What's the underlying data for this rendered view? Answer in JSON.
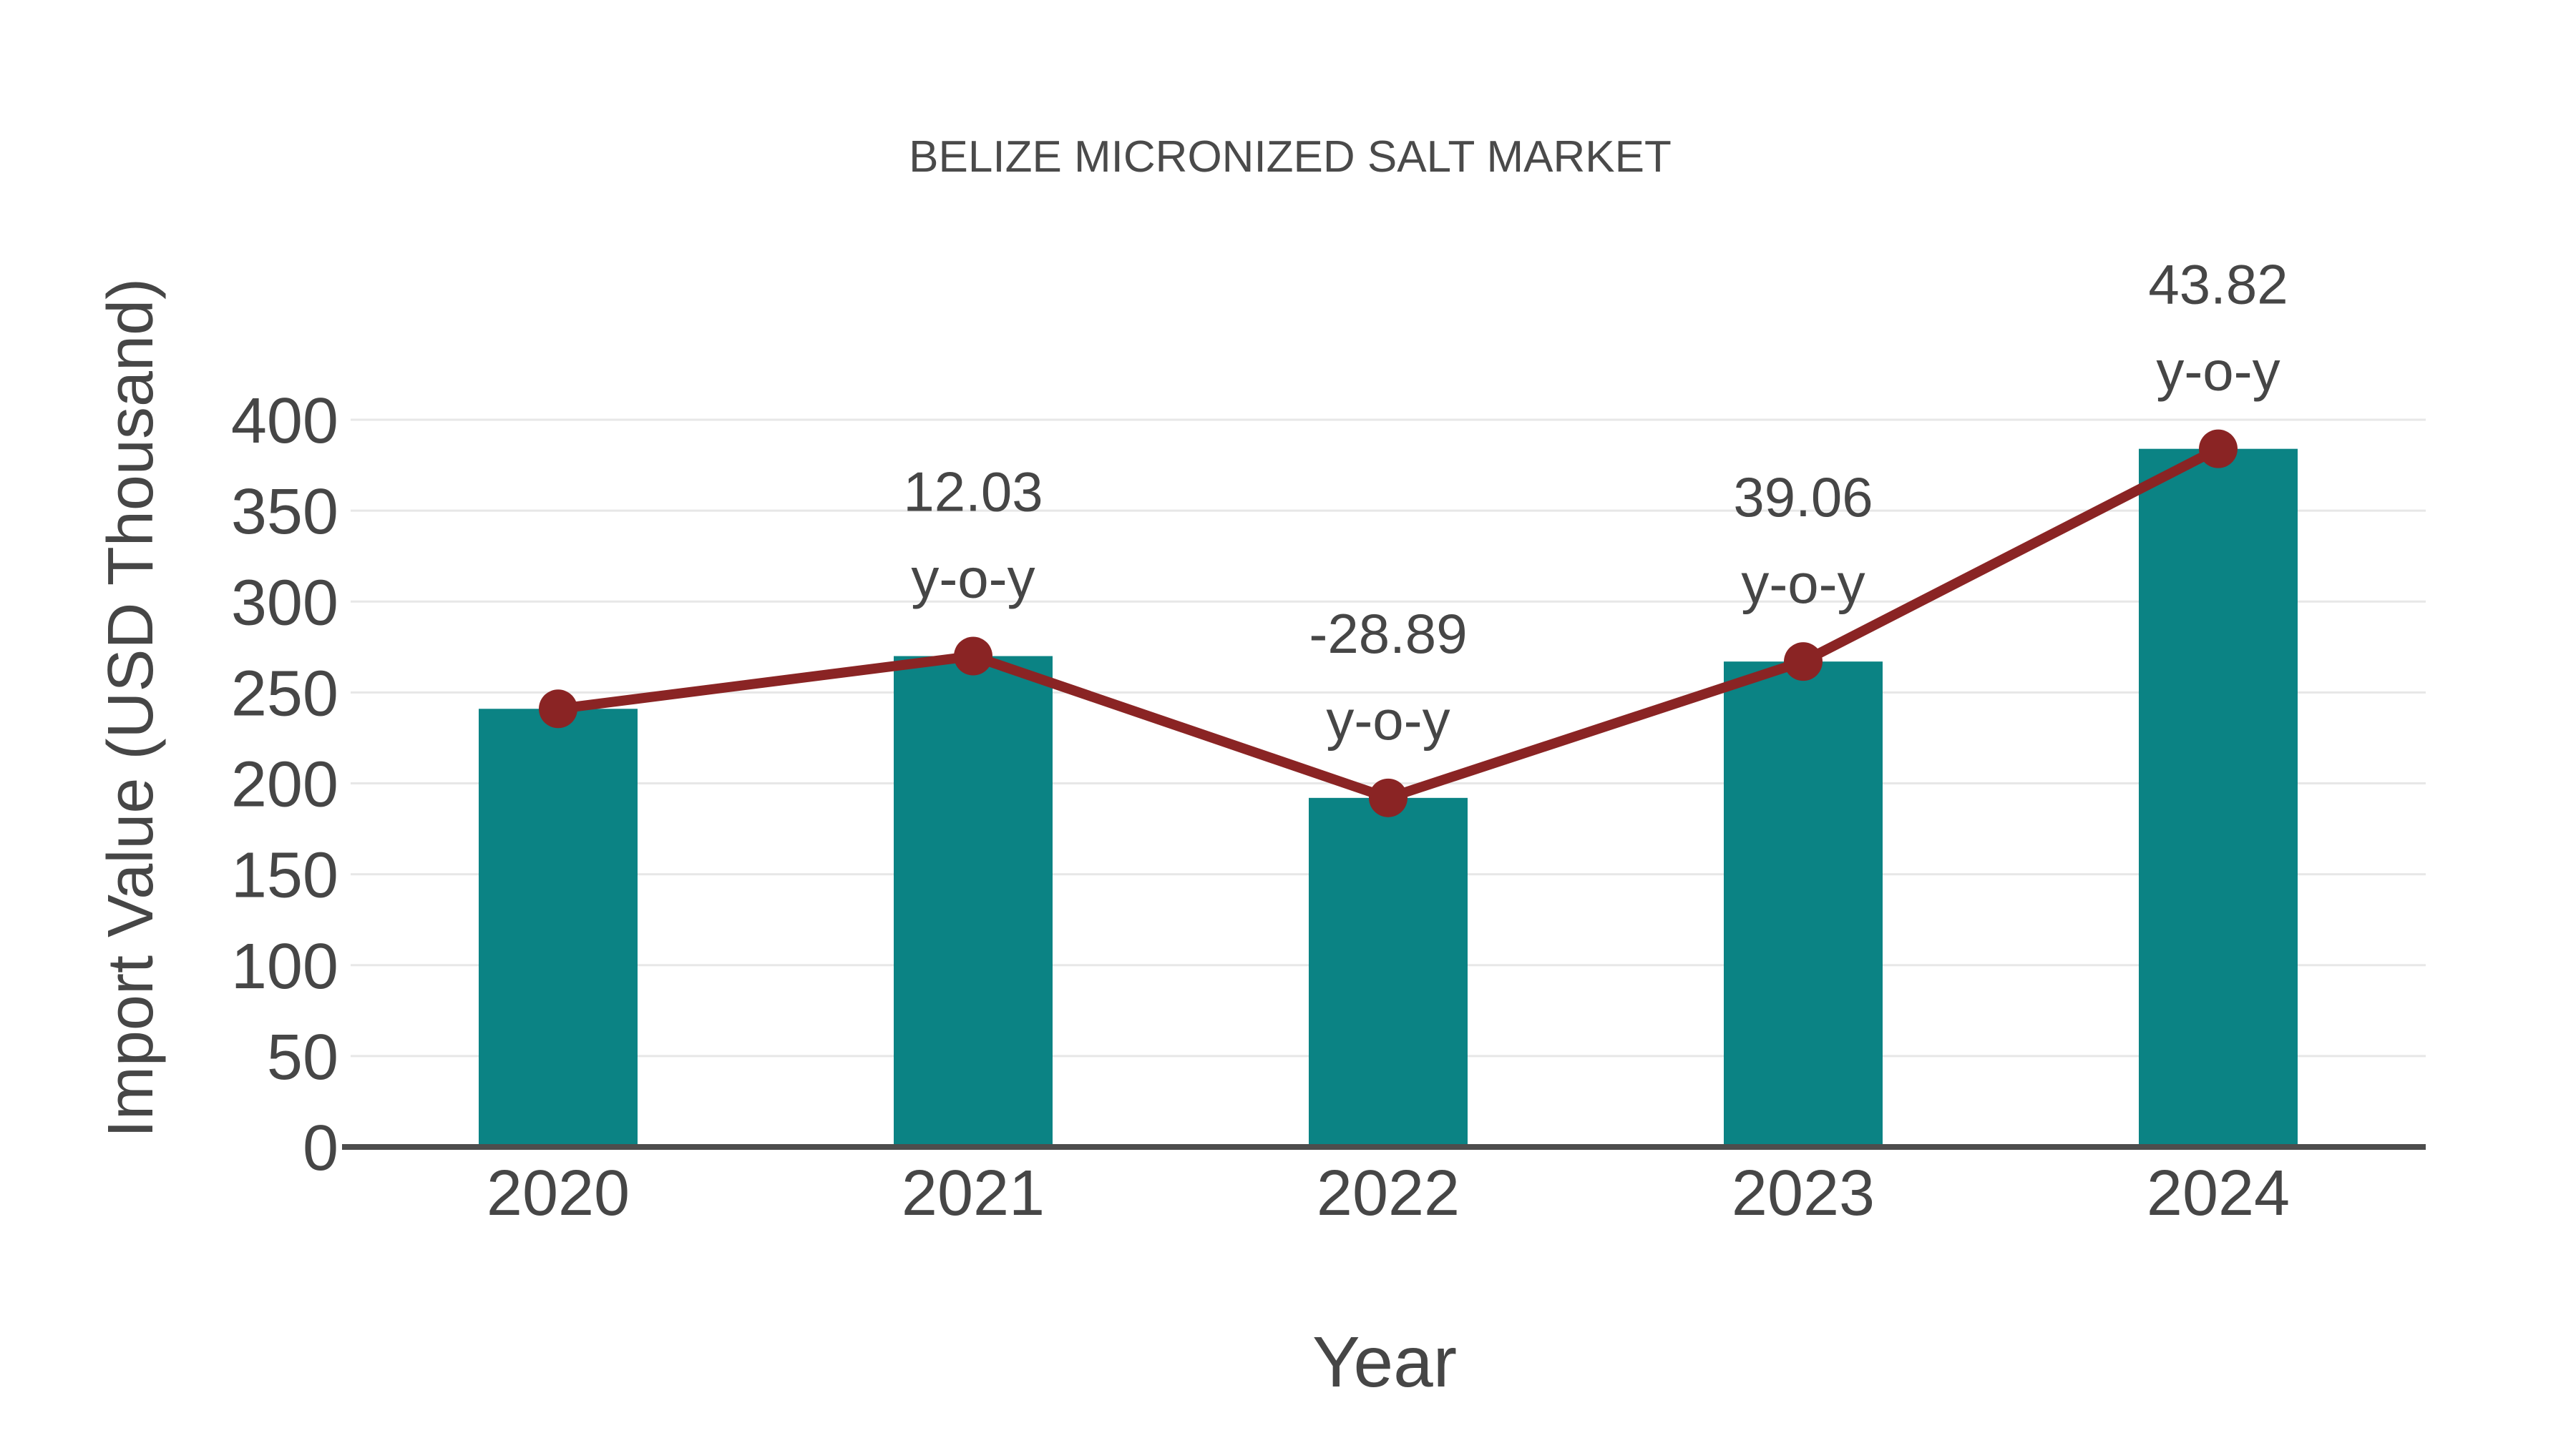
{
  "chart_data": {
    "type": "bar+line",
    "title": "BELIZE MICRONIZED SALT MARKET",
    "xlabel": "Year",
    "ylabel": "Import Value (USD Thousand)",
    "categories": [
      "2020",
      "2021",
      "2022",
      "2023",
      "2024"
    ],
    "series": [
      {
        "name": "import-value-bars",
        "type": "bar",
        "values": [
          241,
          270,
          192,
          267,
          384
        ],
        "color": "#0b8384"
      },
      {
        "name": "import-value-trend",
        "type": "line",
        "values": [
          241,
          270,
          192,
          267,
          384
        ],
        "color": "#8a2424"
      }
    ],
    "yoy_percent": [
      null,
      12.03,
      -28.89,
      39.06,
      43.82
    ],
    "annotations": [
      {
        "category": "2021",
        "text": "12.03",
        "subtext": "y-o-y"
      },
      {
        "category": "2022",
        "text": "-28.89",
        "subtext": "y-o-y"
      },
      {
        "category": "2023",
        "text": "39.06",
        "subtext": "y-o-y"
      },
      {
        "category": "2024",
        "text": "43.82",
        "subtext": "y-o-y"
      }
    ],
    "ylim": [
      0,
      400
    ],
    "yticks": [
      0,
      50,
      100,
      150,
      200,
      250,
      300,
      350,
      400
    ],
    "grid": true,
    "legend_position": "none",
    "colors": {
      "bar": "#0b8384",
      "line": "#8a2424",
      "text": "#464646",
      "title_text": "#4a4a4a",
      "grid": "#e7e7e7",
      "axis": "#4d4d4d",
      "background": "#ffffff"
    }
  }
}
